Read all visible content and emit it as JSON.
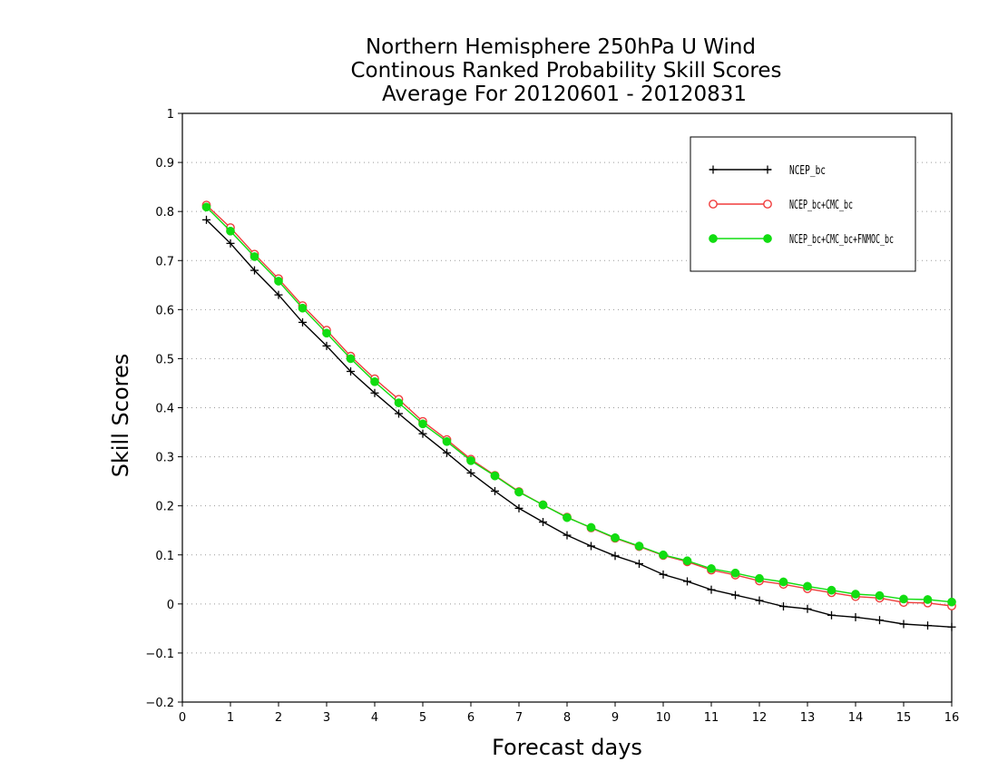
{
  "chart_data": {
    "type": "line",
    "title": [
      "Northern Hemisphere 250hPa U Wind",
      "Continous Ranked Probability Skill Scores",
      "Average For 20120601 - 20120831"
    ],
    "xlabel": "Forecast days",
    "ylabel": "Skill Scores",
    "xlim": [
      0,
      16
    ],
    "ylim": [
      -0.2,
      1
    ],
    "xticks": [
      "0",
      "1",
      "2",
      "3",
      "4",
      "5",
      "6",
      "7",
      "8",
      "9",
      "10",
      "11",
      "12",
      "13",
      "14",
      "15",
      "16"
    ],
    "yticks": [
      "−0.2",
      "−0.1",
      "0",
      "0.1",
      "0.2",
      "0.3",
      "0.4",
      "0.5",
      "0.6",
      "0.7",
      "0.8",
      "0.9",
      "1"
    ],
    "grid": "horizontal-dotted",
    "legend_position": "top-right",
    "x": [
      0.5,
      1,
      1.5,
      2,
      2.5,
      3,
      3.5,
      4,
      4.5,
      5,
      5.5,
      6,
      6.5,
      7,
      7.5,
      8,
      8.5,
      9,
      9.5,
      10,
      10.5,
      11,
      11.5,
      12,
      12.5,
      13,
      13.5,
      14,
      14.5,
      15,
      15.5,
      16
    ],
    "series": [
      {
        "name": "NCEP_bc",
        "color": "#000000",
        "marker": "plus",
        "values": [
          0.783,
          0.735,
          0.68,
          0.63,
          0.574,
          0.526,
          0.474,
          0.43,
          0.388,
          0.347,
          0.308,
          0.267,
          0.23,
          0.195,
          0.167,
          0.14,
          0.118,
          0.098,
          0.082,
          0.06,
          0.046,
          0.029,
          0.018,
          0.007,
          -0.005,
          -0.01,
          -0.023,
          -0.027,
          -0.033,
          -0.041,
          -0.044,
          -0.047
        ]
      },
      {
        "name": "NCEP_bc+CMC_bc",
        "color": "#f03c3c",
        "marker": "open-circle",
        "values": [
          0.813,
          0.767,
          0.713,
          0.663,
          0.608,
          0.558,
          0.505,
          0.459,
          0.417,
          0.372,
          0.335,
          0.295,
          0.262,
          0.229,
          0.202,
          0.177,
          0.155,
          0.134,
          0.117,
          0.099,
          0.086,
          0.069,
          0.059,
          0.047,
          0.04,
          0.031,
          0.023,
          0.015,
          0.012,
          0.003,
          0.002,
          -0.004
        ]
      },
      {
        "name": "NCEP_bc+CMC_bc+FNMOC_bc",
        "color": "#11dd11",
        "marker": "filled-circle",
        "values": [
          0.809,
          0.76,
          0.708,
          0.658,
          0.603,
          0.552,
          0.5,
          0.453,
          0.41,
          0.367,
          0.331,
          0.292,
          0.261,
          0.228,
          0.202,
          0.176,
          0.156,
          0.135,
          0.118,
          0.1,
          0.088,
          0.072,
          0.063,
          0.052,
          0.045,
          0.036,
          0.028,
          0.02,
          0.017,
          0.01,
          0.009,
          0.004
        ]
      }
    ]
  }
}
